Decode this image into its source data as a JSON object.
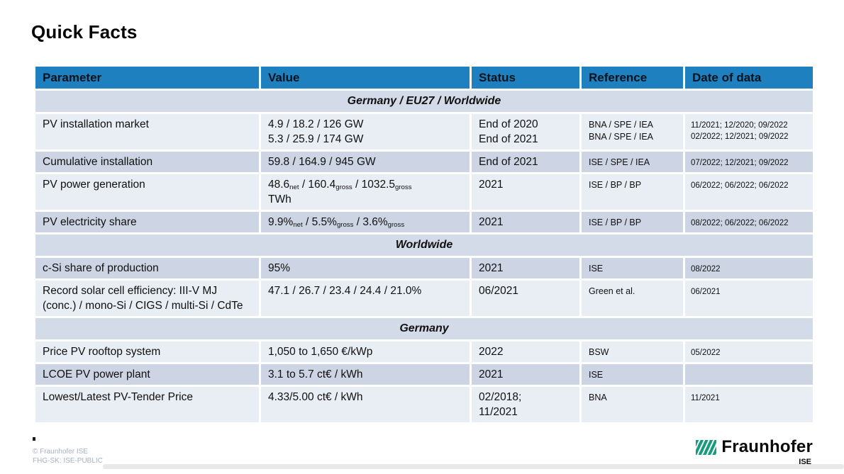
{
  "slide": {
    "title": "Quick Facts",
    "footer": {
      "line1": "© Fraunhofer ISE",
      "line2": "FHG-SK: ISE-PUBLIC"
    },
    "logo": {
      "brand": "Fraunhofer",
      "institute": "ISE"
    }
  },
  "colors": {
    "header_bg": "#1F80C0",
    "section_bg": "#D3DAE8",
    "row_light": "#E9EDF4",
    "row_dark": "#CDD5E4",
    "logo_green": "#179C7D",
    "title_text": "#050505"
  },
  "table": {
    "columns": [
      "Parameter",
      "Value",
      "Status",
      "Reference",
      "Date of data"
    ],
    "rows": [
      {
        "type": "section",
        "label": "Germany / EU27 / Worldwide"
      },
      {
        "type": "data",
        "shade": "light",
        "parameter": [
          [
            {
              "t": "PV installation market"
            }
          ]
        ],
        "value": [
          [
            {
              "t": "4.9 / 18.2 / 126 GW"
            }
          ],
          [
            {
              "t": "5.3 / 25.9 / 174 GW"
            }
          ]
        ],
        "status": [
          [
            {
              "t": "End of 2020"
            }
          ],
          [
            {
              "t": "End of 2021"
            }
          ]
        ],
        "reference": [
          [
            {
              "t": "BNA / SPE / IEA"
            }
          ],
          [
            {
              "t": "BNA / SPE / IEA"
            }
          ]
        ],
        "date": [
          [
            {
              "t": "11/2021; 12/2020; 09/2022"
            }
          ],
          [
            {
              "t": "02/2022; 12/2021; 09/2022"
            }
          ]
        ]
      },
      {
        "type": "data",
        "shade": "dark",
        "parameter": [
          [
            {
              "t": "Cumulative installation"
            }
          ]
        ],
        "value": [
          [
            {
              "t": "59.8 / 164.9 / 945 GW"
            }
          ]
        ],
        "status": [
          [
            {
              "t": "End of 2021"
            }
          ]
        ],
        "reference": [
          [
            {
              "t": "ISE / SPE / IEA"
            }
          ]
        ],
        "date": [
          [
            {
              "t": "07/2022; 12/2021; 09/2022"
            }
          ]
        ]
      },
      {
        "type": "data",
        "shade": "light",
        "parameter": [
          [
            {
              "t": "PV power generation"
            }
          ]
        ],
        "value": [
          [
            {
              "t": "48.6"
            },
            {
              "t": "net",
              "sub": true
            },
            {
              "t": " / 160.4"
            },
            {
              "t": "gross",
              "sub": true
            },
            {
              "t": " / 1032.5"
            },
            {
              "t": "gross",
              "sub": true
            }
          ],
          [
            {
              "t": "TWh"
            }
          ]
        ],
        "status": [
          [
            {
              "t": "2021"
            }
          ]
        ],
        "reference": [
          [
            {
              "t": "ISE / BP / BP"
            }
          ]
        ],
        "date": [
          [
            {
              "t": "06/2022; 06/2022; 06/2022"
            }
          ]
        ]
      },
      {
        "type": "data",
        "shade": "dark",
        "parameter": [
          [
            {
              "t": "PV electricity share"
            }
          ]
        ],
        "value": [
          [
            {
              "t": "9.9%"
            },
            {
              "t": "net",
              "sub": true
            },
            {
              "t": " / 5.5%"
            },
            {
              "t": "gross",
              "sub": true
            },
            {
              "t": " / 3.6%"
            },
            {
              "t": "gross",
              "sub": true
            }
          ]
        ],
        "status": [
          [
            {
              "t": "2021"
            }
          ]
        ],
        "reference": [
          [
            {
              "t": "ISE / BP / BP"
            }
          ]
        ],
        "date": [
          [
            {
              "t": "08/2022; 06/2022; 06/2022"
            }
          ]
        ]
      },
      {
        "type": "section",
        "label": "Worldwide"
      },
      {
        "type": "data",
        "shade": "dark",
        "parameter": [
          [
            {
              "t": "c-Si share of production"
            }
          ]
        ],
        "value": [
          [
            {
              "t": "95%"
            }
          ]
        ],
        "status": [
          [
            {
              "t": "2021"
            }
          ]
        ],
        "reference": [
          [
            {
              "t": "ISE"
            }
          ]
        ],
        "date": [
          [
            {
              "t": "08/2022"
            }
          ]
        ]
      },
      {
        "type": "data",
        "shade": "light",
        "parameter": [
          [
            {
              "t": "Record solar cell efficiency: III-V MJ (conc.) / mono-Si / CIGS / multi-Si / CdTe"
            }
          ]
        ],
        "value": [
          [
            {
              "t": "47.1 / 26.7 / 23.4 / 24.4 / 21.0%"
            }
          ]
        ],
        "status": [
          [
            {
              "t": "06/2021"
            }
          ]
        ],
        "reference": [
          [
            {
              "t": "Green et al."
            }
          ]
        ],
        "date": [
          [
            {
              "t": "06/2021"
            }
          ]
        ]
      },
      {
        "type": "section",
        "label": "Germany"
      },
      {
        "type": "data",
        "shade": "light",
        "parameter": [
          [
            {
              "t": "Price PV rooftop system"
            }
          ]
        ],
        "value": [
          [
            {
              "t": "1,050 to 1,650 €/kWp"
            }
          ]
        ],
        "status": [
          [
            {
              "t": "2022"
            }
          ]
        ],
        "reference": [
          [
            {
              "t": "BSW"
            }
          ]
        ],
        "date": [
          [
            {
              "t": "05/2022"
            }
          ]
        ]
      },
      {
        "type": "data",
        "shade": "dark",
        "parameter": [
          [
            {
              "t": "LCOE PV power plant"
            }
          ]
        ],
        "value": [
          [
            {
              "t": "3.1 to 5.7 ct€ / kWh"
            }
          ]
        ],
        "status": [
          [
            {
              "t": "2021"
            }
          ]
        ],
        "reference": [
          [
            {
              "t": "ISE"
            }
          ]
        ],
        "date": [
          [
            {
              "t": ""
            }
          ]
        ]
      },
      {
        "type": "data",
        "shade": "light",
        "parameter": [
          [
            {
              "t": "Lowest/Latest PV-Tender Price"
            }
          ]
        ],
        "value": [
          [
            {
              "t": "4.33/5.00 ct€ / kWh"
            }
          ]
        ],
        "status": [
          [
            {
              "t": "02/2018;"
            }
          ],
          [
            {
              "t": "11/2021"
            }
          ]
        ],
        "reference": [
          [
            {
              "t": "BNA"
            }
          ]
        ],
        "date": [
          [
            {
              "t": "11/2021"
            }
          ]
        ]
      }
    ]
  }
}
